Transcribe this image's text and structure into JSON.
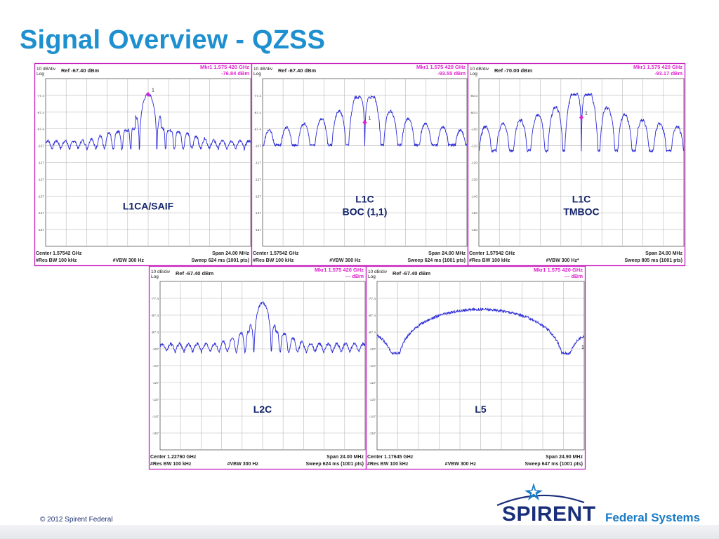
{
  "slide": {
    "title": "Signal Overview - QZSS",
    "copyright": "© 2012 Spirent Federal",
    "logo_word": "SPIRENT",
    "logo_sub": "Federal Systems",
    "colors": {
      "title": "#1e8fcf",
      "panel_border": "#c61fbe",
      "trace": "#2a2ad8",
      "marker": "#e01fd0",
      "grid": "#b8b8b8",
      "logo_navy": "#1a2f7a",
      "logo_blue": "#1a7bc4"
    }
  },
  "chart_data": [
    {
      "id": "l1ca",
      "type": "line",
      "label": "L1CA/SAIF",
      "scale": "10 dB/div",
      "scale2": "Log",
      "ref": "Ref -67.40 dBm",
      "marker_freq": "Mkr1 1.575 420 GHz",
      "marker_level": "-76.84 dBm",
      "center": "Center 1.57542 GHz",
      "span": "Span 24.00 MHz",
      "rbw": "#Res BW 100 kHz",
      "vbw": "#VBW 300 Hz",
      "sweep": "Sweep  624 ms (1001 pts)",
      "ytick_labels": [
        "",
        "-77.4",
        "-87.4",
        "-97.4",
        "-107",
        "-117",
        "-127",
        "-137",
        "-147",
        "-157",
        ""
      ],
      "marker_label": "1",
      "x_range_mhz": [
        -12,
        12
      ],
      "y_range_db": [
        -167.4,
        -67.4
      ],
      "signal": {
        "kind": "sinc",
        "width_mhz": 1.023,
        "peak_dbm": -76.8,
        "null_dbm": -109.5,
        "floor_dbm": -104.5
      },
      "marker": {
        "x_mhz": 0,
        "y_dbm": -76.84
      }
    },
    {
      "id": "l1c_boc",
      "type": "line",
      "label": "L1C",
      "label2": "BOC (1,1)",
      "scale": "10 dB/div",
      "scale2": "Log",
      "ref": "Ref -67.40 dBm",
      "marker_freq": "Mkr1 1.575 420 GHz",
      "marker_level": "-93.55 dBm",
      "center": "Center 1.57542 GHz",
      "span": "Span 24.00 MHz",
      "rbw": "#Res BW 100 kHz",
      "vbw": "#VBW 300 Hz",
      "sweep": "Sweep  624 ms (1001 pts)",
      "ytick_labels": [
        "",
        "-77.4",
        "-87.4",
        "-97.4",
        "-107",
        "-117",
        "-127",
        "-137",
        "-147",
        "-157",
        ""
      ],
      "marker_label": "1",
      "x_range_mhz": [
        -12,
        12
      ],
      "y_range_db": [
        -167.4,
        -67.4
      ],
      "signal": {
        "kind": "boc",
        "width_mhz": 1.023,
        "peak_dbm": -78.5,
        "null_dbm": -107,
        "floor_dbm": -91
      },
      "marker": {
        "x_mhz": 0,
        "y_dbm": -93.55
      }
    },
    {
      "id": "l1c_tmboc",
      "type": "line",
      "label": "L1C",
      "label2": "TMBOC",
      "scale": "10 dB/div",
      "scale2": "Log",
      "ref": "Ref -70.00 dBm",
      "marker_freq": "Mkr1 1.575 420 GHz",
      "marker_level": "-93.17 dBm",
      "center": "Center 1.57542 GHz",
      "span": "Span 24.00 MHz",
      "rbw": "#Res BW 100 kHz",
      "vbw": "#VBW 300 Hz*",
      "sweep": "Sweep  805 ms (1001 pts)",
      "ytick_labels": [
        "",
        "-80.0",
        "-90.0",
        "-100",
        "-110",
        "-120",
        "-130",
        "-140",
        "-150",
        "-160",
        ""
      ],
      "marker_label": "1",
      "x_range_mhz": [
        -12,
        12
      ],
      "y_range_db": [
        -170,
        -70
      ],
      "signal": {
        "kind": "tmboc",
        "width_mhz": 1.023,
        "peak_dbm": -79.5,
        "null_dbm": -113,
        "floor_dbm": -94
      },
      "marker": {
        "x_mhz": 0,
        "y_dbm": -93.17
      }
    },
    {
      "id": "l2c",
      "type": "line",
      "label": "L2C",
      "scale": "10 dB/div",
      "scale2": "Log",
      "ref": "Ref -67.40 dBm",
      "marker_freq": "Mkr1 1.575 420 GHz",
      "marker_level": "--- dBm",
      "center": "Center 1.22760 GHz",
      "span": "Span 24.00 MHz",
      "rbw": "#Res BW 100 kHz",
      "vbw": "#VBW 300 Hz",
      "sweep": "Sweep  624 ms (1001 pts)",
      "ytick_labels": [
        "",
        "-77.4",
        "-87.4",
        "-97.4",
        "-107",
        "-117",
        "-127",
        "-137",
        "-147",
        "-157",
        ""
      ],
      "marker_label": "",
      "x_range_mhz": [
        -12,
        12
      ],
      "y_range_db": [
        -167.4,
        -67.4
      ],
      "signal": {
        "kind": "sinc",
        "width_mhz": 1.023,
        "peak_dbm": -80,
        "null_dbm": -110,
        "floor_dbm": -104.5
      },
      "marker": null
    },
    {
      "id": "l5",
      "type": "line",
      "label": "L5",
      "scale": "10 dB/div",
      "scale2": "Log",
      "ref": "Ref -67.40 dBm",
      "marker_freq": "Mkr1 1.575 420 GHz",
      "marker_level": "--- dBm",
      "center": "Center 1.17645 GHz",
      "span": "Span 24.90 MHz",
      "rbw": "#Res BW 100 kHz",
      "vbw": "#VBW 300 Hz",
      "sweep": "Sweep  647 ms (1001 pts)",
      "ytick_labels": [
        "",
        "-77.4",
        "-87.4",
        "-97.4",
        "-107",
        "-117",
        "-127",
        "-137",
        "-147",
        "-157",
        ""
      ],
      "marker_label": "1",
      "x_range_mhz": [
        -12.45,
        12.45
      ],
      "y_range_db": [
        -167.4,
        -67.4
      ],
      "signal": {
        "kind": "sinc",
        "width_mhz": 10.23,
        "peak_dbm": -84,
        "null_dbm": -110,
        "floor_dbm": -102.5
      },
      "marker": null
    }
  ]
}
